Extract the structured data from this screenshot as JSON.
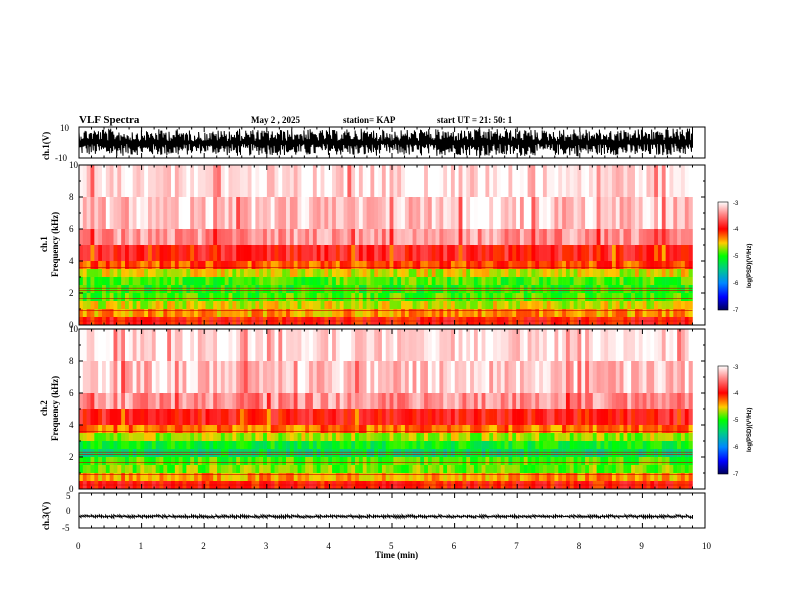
{
  "header": {
    "title": "VLF Spectra",
    "date": "May 2 , 2025",
    "station": "station= KAP",
    "start": "start  UT  =   21: 50: 1"
  },
  "chart_data": [
    {
      "type": "line",
      "id": "ch1-waveform",
      "ylabel": "ch.1(V)",
      "ylim": [
        -10,
        10
      ],
      "ytick_labels": [
        "10",
        "-10"
      ],
      "x": [
        0,
        0.5,
        1,
        1.5,
        2,
        2.5,
        3,
        3.5,
        4,
        4.5,
        5,
        5.5,
        6,
        6.5,
        7,
        7.5,
        8,
        8.5,
        9,
        9.5,
        9.8
      ],
      "envelope_min": [
        -8,
        -9,
        -8,
        -9,
        -7,
        -9,
        -8,
        -9,
        -8,
        -9,
        -8,
        -9,
        -8,
        -9,
        -9,
        -8,
        -9,
        -8,
        -9,
        -8,
        -8
      ],
      "envelope_max": [
        9,
        9,
        8,
        9,
        7,
        9,
        8,
        9,
        8,
        9,
        8,
        9,
        8,
        9,
        9,
        8,
        9,
        8,
        9,
        9,
        9
      ]
    },
    {
      "type": "heatmap",
      "id": "ch1-spectrogram",
      "ylabel": "ch.1",
      "ylabel2": "Frequency (kHz)",
      "ylim": [
        0,
        10
      ],
      "ytick_labels": [
        "0",
        "2",
        "4",
        "6",
        "8",
        "10"
      ],
      "z_label": "log(PSD)(V²/Hz)",
      "z_range": [
        -7,
        -3
      ],
      "z_tick_labels": [
        "-3",
        "-4",
        "-5",
        "-6",
        "-7"
      ],
      "freq_bands_khz": [
        0.5,
        1.0,
        1.5,
        2.0,
        2.5,
        3.0,
        3.5,
        4.0,
        5.0,
        6.0,
        8.0,
        10.0
      ],
      "band_mean_log_psd": [
        -4.0,
        -4.4,
        -4.6,
        -4.9,
        -5.0,
        -4.9,
        -4.6,
        -4.2,
        -3.9,
        -3.4,
        -3.2,
        -3.1
      ]
    },
    {
      "type": "heatmap",
      "id": "ch2-spectrogram",
      "ylabel": "ch.2",
      "ylabel2": "Frequency (kHz)",
      "ylim": [
        0,
        10
      ],
      "ytick_labels": [
        "0",
        "2",
        "4",
        "6",
        "8",
        "10"
      ],
      "z_label": "log(PSD)(V²/Hz)",
      "z_range": [
        -7,
        -3
      ],
      "z_tick_labels": [
        "-3",
        "-4",
        "-5",
        "-6",
        "-7"
      ],
      "freq_bands_khz": [
        0.5,
        1.0,
        1.5,
        2.0,
        2.5,
        3.0,
        3.5,
        4.0,
        5.0,
        6.0,
        8.0,
        10.0
      ],
      "band_mean_log_psd": [
        -4.0,
        -4.4,
        -4.8,
        -4.9,
        -5.3,
        -5.1,
        -4.7,
        -4.3,
        -3.9,
        -3.4,
        -3.2,
        -3.1
      ]
    },
    {
      "type": "line",
      "id": "ch3-waveform",
      "ylabel": "ch.3(V)",
      "ylim": [
        -5,
        5
      ],
      "ytick_labels": [
        "5",
        "0",
        "-5"
      ],
      "x": [
        0,
        9.8
      ],
      "envelope_min": [
        -2.2,
        -2.2
      ],
      "envelope_max": [
        -1.2,
        -1.2
      ]
    }
  ],
  "xaxis": {
    "label": "Time (min)",
    "xlim": [
      0,
      10
    ],
    "tick_labels": [
      "0",
      "1",
      "2",
      "3",
      "4",
      "5",
      "6",
      "7",
      "8",
      "9",
      "10"
    ]
  }
}
